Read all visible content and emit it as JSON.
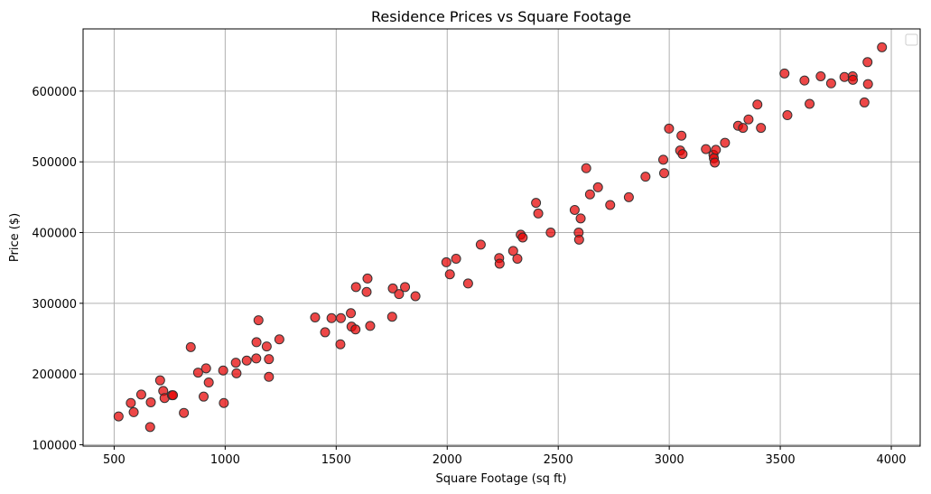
{
  "colors": {
    "point_fill": "#e60000",
    "point_edge": "#333333",
    "grid": "#b0b0b0"
  },
  "chart_data": {
    "type": "scatter",
    "title": "Residence Prices vs Square Footage",
    "xlabel": "Square Footage (sq ft)",
    "ylabel": "Price ($)",
    "xlim": [
      360,
      4130
    ],
    "ylim": [
      98000,
      688000
    ],
    "xticks": [
      500,
      1000,
      1500,
      2000,
      2500,
      3000,
      3500,
      4000
    ],
    "yticks": [
      100000,
      200000,
      300000,
      400000,
      500000,
      600000
    ],
    "grid": true,
    "legend": "top-right (empty)",
    "points": [
      {
        "x": 520,
        "y": 140000
      },
      {
        "x": 575,
        "y": 159000
      },
      {
        "x": 588,
        "y": 146000
      },
      {
        "x": 622,
        "y": 171000
      },
      {
        "x": 662,
        "y": 125000
      },
      {
        "x": 665,
        "y": 160000
      },
      {
        "x": 707,
        "y": 191000
      },
      {
        "x": 721,
        "y": 176000
      },
      {
        "x": 727,
        "y": 166000
      },
      {
        "x": 760,
        "y": 170000
      },
      {
        "x": 765,
        "y": 170000
      },
      {
        "x": 814,
        "y": 145000
      },
      {
        "x": 845,
        "y": 238000
      },
      {
        "x": 878,
        "y": 202000
      },
      {
        "x": 903,
        "y": 168000
      },
      {
        "x": 914,
        "y": 208000
      },
      {
        "x": 926,
        "y": 188000
      },
      {
        "x": 991,
        "y": 205000
      },
      {
        "x": 994,
        "y": 159000
      },
      {
        "x": 1048,
        "y": 216000
      },
      {
        "x": 1051,
        "y": 201000
      },
      {
        "x": 1097,
        "y": 219000
      },
      {
        "x": 1140,
        "y": 222000
      },
      {
        "x": 1141,
        "y": 245000
      },
      {
        "x": 1150,
        "y": 276000
      },
      {
        "x": 1187,
        "y": 239000
      },
      {
        "x": 1197,
        "y": 221000
      },
      {
        "x": 1197,
        "y": 196000
      },
      {
        "x": 1244,
        "y": 249000
      },
      {
        "x": 1405,
        "y": 280000
      },
      {
        "x": 1450,
        "y": 259000
      },
      {
        "x": 1479,
        "y": 279000
      },
      {
        "x": 1519,
        "y": 242000
      },
      {
        "x": 1521,
        "y": 279000
      },
      {
        "x": 1566,
        "y": 286000
      },
      {
        "x": 1569,
        "y": 267000
      },
      {
        "x": 1587,
        "y": 263000
      },
      {
        "x": 1589,
        "y": 323000
      },
      {
        "x": 1637,
        "y": 316000
      },
      {
        "x": 1641,
        "y": 335000
      },
      {
        "x": 1653,
        "y": 268000
      },
      {
        "x": 1752,
        "y": 281000
      },
      {
        "x": 1755,
        "y": 321000
      },
      {
        "x": 1783,
        "y": 313000
      },
      {
        "x": 1810,
        "y": 323000
      },
      {
        "x": 1857,
        "y": 310000
      },
      {
        "x": 1996,
        "y": 358000
      },
      {
        "x": 2012,
        "y": 341000
      },
      {
        "x": 2040,
        "y": 363000
      },
      {
        "x": 2094,
        "y": 328000
      },
      {
        "x": 2151,
        "y": 383000
      },
      {
        "x": 2234,
        "y": 364000
      },
      {
        "x": 2236,
        "y": 356000
      },
      {
        "x": 2297,
        "y": 374000
      },
      {
        "x": 2316,
        "y": 363000
      },
      {
        "x": 2331,
        "y": 397000
      },
      {
        "x": 2340,
        "y": 393000
      },
      {
        "x": 2400,
        "y": 442000
      },
      {
        "x": 2410,
        "y": 427000
      },
      {
        "x": 2466,
        "y": 400000
      },
      {
        "x": 2574,
        "y": 432000
      },
      {
        "x": 2592,
        "y": 400000
      },
      {
        "x": 2594,
        "y": 390000
      },
      {
        "x": 2601,
        "y": 420000
      },
      {
        "x": 2626,
        "y": 491000
      },
      {
        "x": 2643,
        "y": 454000
      },
      {
        "x": 2679,
        "y": 464000
      },
      {
        "x": 2734,
        "y": 439000
      },
      {
        "x": 2818,
        "y": 450000
      },
      {
        "x": 2893,
        "y": 479000
      },
      {
        "x": 2973,
        "y": 503000
      },
      {
        "x": 2977,
        "y": 484000
      },
      {
        "x": 2999,
        "y": 547000
      },
      {
        "x": 3049,
        "y": 516000
      },
      {
        "x": 3055,
        "y": 537000
      },
      {
        "x": 3060,
        "y": 511000
      },
      {
        "x": 3165,
        "y": 518000
      },
      {
        "x": 3199,
        "y": 510000
      },
      {
        "x": 3201,
        "y": 505000
      },
      {
        "x": 3205,
        "y": 499000
      },
      {
        "x": 3210,
        "y": 517000
      },
      {
        "x": 3251,
        "y": 527000
      },
      {
        "x": 3310,
        "y": 551000
      },
      {
        "x": 3332,
        "y": 548000
      },
      {
        "x": 3357,
        "y": 560000
      },
      {
        "x": 3397,
        "y": 581000
      },
      {
        "x": 3413,
        "y": 548000
      },
      {
        "x": 3519,
        "y": 625000
      },
      {
        "x": 3532,
        "y": 566000
      },
      {
        "x": 3609,
        "y": 615000
      },
      {
        "x": 3632,
        "y": 582000
      },
      {
        "x": 3682,
        "y": 621000
      },
      {
        "x": 3729,
        "y": 611000
      },
      {
        "x": 3789,
        "y": 620000
      },
      {
        "x": 3826,
        "y": 621000
      },
      {
        "x": 3827,
        "y": 616000
      },
      {
        "x": 3879,
        "y": 584000
      },
      {
        "x": 3893,
        "y": 641000
      },
      {
        "x": 3895,
        "y": 610000
      },
      {
        "x": 3958,
        "y": 662000
      }
    ]
  }
}
